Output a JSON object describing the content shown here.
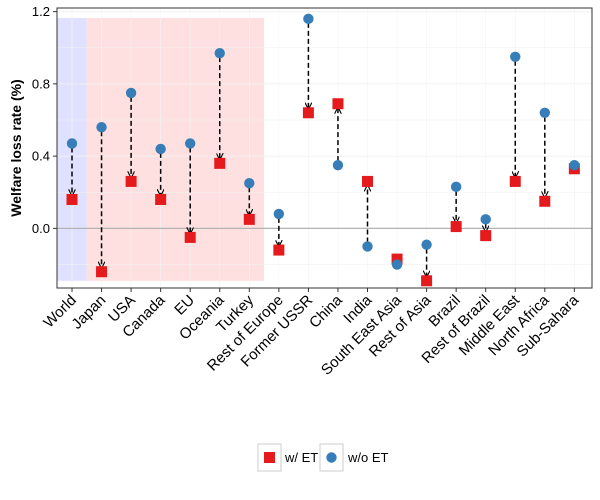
{
  "chart_data": {
    "type": "scatter",
    "title": "",
    "xlabel": "",
    "ylabel": "Welfare loss rate (%)",
    "ylim": [
      -0.33,
      1.22
    ],
    "yticks": [
      0.0,
      0.4,
      0.8,
      1.2
    ],
    "ytick_labels": [
      "0.0",
      "0.4",
      "0.8",
      "1.2"
    ],
    "categories": [
      "World",
      "Japan",
      "USA",
      "Canada",
      "EU",
      "Oceania",
      "Turkey",
      "Rest of Europe",
      "Former USSR",
      "China",
      "India",
      "South East Asia",
      "Rest of Asia",
      "Brazil",
      "Rest of Brazil",
      "Middle East",
      "North Africa",
      "Sub-Sahara"
    ],
    "series": [
      {
        "name": "w/ ET",
        "marker": "square",
        "color": "#e41a1c",
        "values": [
          0.16,
          -0.24,
          0.26,
          0.16,
          -0.05,
          0.36,
          0.05,
          -0.12,
          0.64,
          0.69,
          0.26,
          -0.17,
          -0.29,
          0.01,
          -0.04,
          0.26,
          0.15,
          0.33
        ]
      },
      {
        "name": "w/o ET",
        "marker": "circle",
        "color": "#377eb8",
        "values": [
          0.47,
          0.56,
          0.75,
          0.44,
          0.47,
          0.97,
          0.25,
          0.08,
          1.16,
          0.35,
          -0.1,
          -0.2,
          -0.09,
          0.23,
          0.05,
          0.95,
          0.64,
          0.35
        ]
      }
    ],
    "shaded_regions": [
      {
        "from_category": "World",
        "to_category": "World",
        "color": "#e0e0ff"
      },
      {
        "from_category": "Japan",
        "to_category": "Turkey",
        "color": "#ffe0e0"
      }
    ],
    "connector": {
      "style": "dashed",
      "color": "#000000",
      "arrow_direction": "w/o ET to w/ ET"
    },
    "reference_line": {
      "y": 0.0,
      "color": "#b3b3b3"
    },
    "grid": true,
    "legend": {
      "position": "bottom"
    }
  }
}
